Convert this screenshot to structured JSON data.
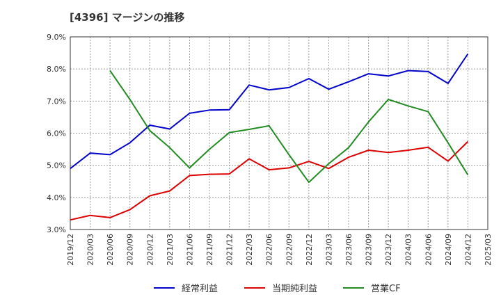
{
  "chart_data": {
    "type": "line",
    "title": "[4396]  マージンの推移",
    "xlabel": "",
    "ylabel": "",
    "ylim": [
      3.0,
      9.0
    ],
    "y_ticks": [
      "3.0%",
      "4.0%",
      "5.0%",
      "6.0%",
      "7.0%",
      "8.0%",
      "9.0%"
    ],
    "categories": [
      "2019/12",
      "2020/03",
      "2020/06",
      "2020/09",
      "2020/12",
      "2021/03",
      "2021/06",
      "2021/09",
      "2021/12",
      "2022/03",
      "2022/06",
      "2022/09",
      "2022/12",
      "2023/03",
      "2023/06",
      "2023/09",
      "2023/12",
      "2024/03",
      "2024/06",
      "2024/09",
      "2024/12",
      "2025/03"
    ],
    "grid": true,
    "legend_position": "bottom",
    "series": [
      {
        "name": "経常利益",
        "color": "#0000cc",
        "values": [
          4.9,
          5.38,
          5.33,
          5.7,
          6.25,
          6.13,
          6.62,
          6.72,
          6.73,
          7.5,
          7.35,
          7.42,
          7.7,
          7.37,
          7.6,
          7.85,
          7.78,
          7.95,
          7.92,
          7.55,
          8.47,
          null
        ]
      },
      {
        "name": "当期純利益",
        "color": "#dd0000",
        "values": [
          3.3,
          3.44,
          3.37,
          3.62,
          4.05,
          4.2,
          4.68,
          4.72,
          4.73,
          5.2,
          4.86,
          4.92,
          5.12,
          4.9,
          5.25,
          5.47,
          5.4,
          5.47,
          5.56,
          5.13,
          5.74,
          null
        ]
      },
      {
        "name": "営業CF",
        "color": "#228b22",
        "values": [
          null,
          null,
          7.95,
          7.05,
          6.08,
          5.55,
          4.92,
          5.5,
          6.02,
          6.12,
          6.23,
          5.33,
          4.47,
          5.05,
          5.55,
          6.35,
          7.05,
          6.85,
          6.67,
          5.7,
          4.7,
          null
        ]
      }
    ]
  }
}
